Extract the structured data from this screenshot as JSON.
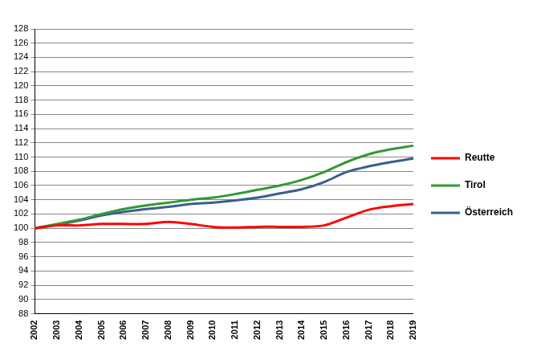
{
  "chart_data": {
    "type": "line",
    "categories": [
      "2002",
      "2003",
      "2004",
      "2005",
      "2006",
      "2007",
      "2008",
      "2009",
      "2010",
      "2011",
      "2012",
      "2013",
      "2014",
      "2015",
      "2016",
      "2017",
      "2018",
      "2019"
    ],
    "series": [
      {
        "name": "Reutte",
        "color": "#ff0000",
        "values": [
          100,
          100.4,
          100.4,
          100.6,
          100.6,
          100.6,
          100.9,
          100.6,
          100.2,
          100.1,
          100.2,
          100.2,
          100.2,
          100.4,
          101.5,
          102.6,
          103.1,
          103.4
        ]
      },
      {
        "name": "Tirol",
        "color": "#339933",
        "values": [
          100,
          100.6,
          101.2,
          102.0,
          102.7,
          103.2,
          103.6,
          104.0,
          104.3,
          104.8,
          105.4,
          106.0,
          106.8,
          107.9,
          109.3,
          110.4,
          111.1,
          111.6
        ]
      },
      {
        "name": "Österreich",
        "color": "#3a5f8f",
        "values": [
          100,
          100.5,
          101.1,
          101.8,
          102.3,
          102.7,
          103.0,
          103.4,
          103.6,
          103.9,
          104.3,
          104.9,
          105.5,
          106.5,
          107.9,
          108.7,
          109.3,
          109.8
        ]
      }
    ],
    "ylim": [
      88,
      128
    ],
    "yticks": [
      88,
      90,
      92,
      94,
      96,
      98,
      100,
      102,
      104,
      106,
      108,
      110,
      112,
      114,
      116,
      118,
      120,
      122,
      124,
      126,
      128
    ],
    "grid": true,
    "legend": "right"
  }
}
